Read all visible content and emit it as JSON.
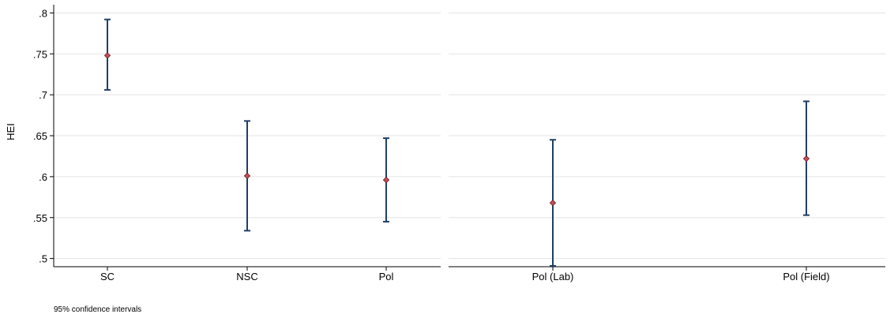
{
  "chart_data": {
    "type": "scatter",
    "ylabel": "HEI",
    "ylim": [
      0.49,
      0.81
    ],
    "yticks": [
      0.5,
      0.55,
      0.6,
      0.65,
      0.7,
      0.75,
      0.8
    ],
    "ytick_labels": [
      ".5",
      ".55",
      ".6",
      ".65",
      ".7",
      ".75",
      ".8"
    ],
    "grid": true,
    "marker_color": "#c0505a",
    "errorbar_color": "#1f3f66",
    "panels": [
      {
        "categories": [
          "SC",
          "NSC",
          "Pol"
        ],
        "points": [
          {
            "label": "SC",
            "estimate": 0.748,
            "lower": 0.706,
            "upper": 0.792
          },
          {
            "label": "NSC",
            "estimate": 0.601,
            "lower": 0.534,
            "upper": 0.668
          },
          {
            "label": "Pol",
            "estimate": 0.596,
            "lower": 0.545,
            "upper": 0.647
          }
        ]
      },
      {
        "categories": [
          "Pol (Lab)",
          "Pol (Field)"
        ],
        "points": [
          {
            "label": "Pol (Lab)",
            "estimate": 0.568,
            "lower": 0.491,
            "upper": 0.645
          },
          {
            "label": "Pol (Field)",
            "estimate": 0.622,
            "lower": 0.553,
            "upper": 0.692
          }
        ]
      }
    ],
    "note": "95% confidence intervals"
  }
}
